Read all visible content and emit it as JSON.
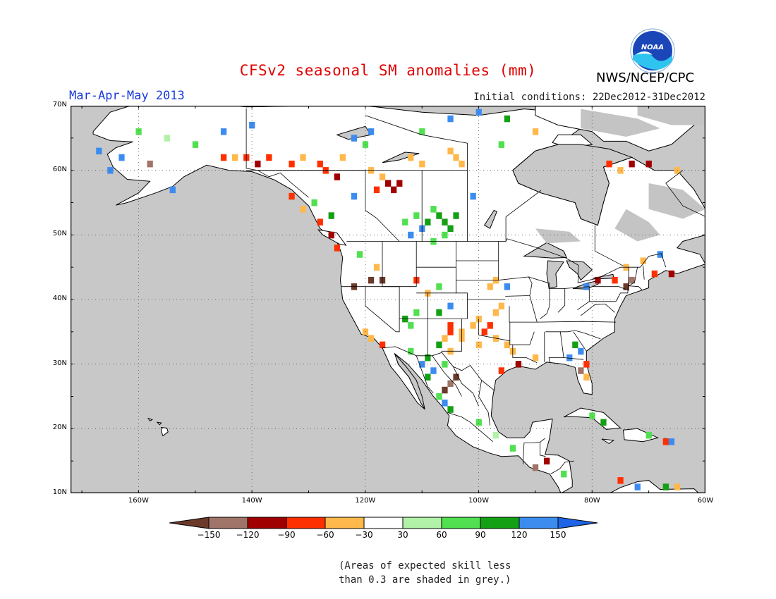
{
  "title": "CFSv2 seasonal SM anomalies (mm)",
  "season": "Mar-Apr-May 2013",
  "initial_conditions": "Initial conditions: 22Dec2012-31Dec2012",
  "agency": "NWS/NCEP/CPC",
  "logo_text": "NOAA",
  "note_line1": "(Areas of expected skill less",
  "note_line2": "than 0.3 are shaded in grey.)",
  "lat_labels": [
    "70N",
    "60N",
    "50N",
    "40N",
    "30N",
    "20N",
    "10N"
  ],
  "lon_labels": [
    "160W",
    "140W",
    "120W",
    "100W",
    "80W",
    "60W"
  ],
  "colorbar": {
    "labels": [
      "-150",
      "-120",
      "-90",
      "-60",
      "-30",
      "30",
      "60",
      "90",
      "120",
      "150"
    ],
    "colors": [
      "#6b3a2a",
      "#a07468",
      "#a00000",
      "#ff3000",
      "#ffb84a",
      "#ffffff",
      "#b2f2a8",
      "#50e050",
      "#14a014",
      "#3c8cf0",
      "#1e64e6"
    ]
  },
  "colors": {
    "ocean": "#c8c8c8",
    "land": "#ffffff",
    "no_skill": "#c4c4c4",
    "title": "#e00000",
    "season": "#1a3cd8"
  },
  "extent": {
    "lon_min": -172,
    "lon_max": -60,
    "lat_min": 10,
    "lat_max": 70
  },
  "anomaly_cells": [
    {
      "lat": 58,
      "lon": -116,
      "level": -3
    },
    {
      "lat": 57,
      "lon": -115,
      "level": -3
    },
    {
      "lat": 58,
      "lon": -114,
      "level": -3
    },
    {
      "lat": 59,
      "lon": -117,
      "level": -1
    },
    {
      "lat": 60,
      "lon": -119,
      "level": -1
    },
    {
      "lat": 57,
      "lon": -118,
      "level": -2
    },
    {
      "lat": 62,
      "lon": -124,
      "level": -1
    },
    {
      "lat": 61,
      "lon": -128,
      "level": -2
    },
    {
      "lat": 60,
      "lon": -127,
      "level": -2
    },
    {
      "lat": 62,
      "lon": -131,
      "level": -1
    },
    {
      "lat": 61,
      "lon": -133,
      "level": -2
    },
    {
      "lat": 59,
      "lon": -125,
      "level": -3
    },
    {
      "lat": 62,
      "lon": -145,
      "level": -2
    },
    {
      "lat": 62,
      "lon": -143,
      "level": -1
    },
    {
      "lat": 62,
      "lon": -141,
      "level": -2
    },
    {
      "lat": 61,
      "lon": -139,
      "level": -3
    },
    {
      "lat": 62,
      "lon": -137,
      "level": -2
    },
    {
      "lat": 62,
      "lon": -112,
      "level": -1
    },
    {
      "lat": 61,
      "lon": -110,
      "level": -1
    },
    {
      "lat": 53,
      "lon": -107,
      "level": 3
    },
    {
      "lat": 52,
      "lon": -106,
      "level": 3
    },
    {
      "lat": 51,
      "lon": -105,
      "level": 3
    },
    {
      "lat": 53,
      "lon": -104,
      "level": 3
    },
    {
      "lat": 52,
      "lon": -109,
      "level": 3
    },
    {
      "lat": 50,
      "lon": -106,
      "level": 2
    },
    {
      "lat": 51,
      "lon": -110,
      "level": 4
    },
    {
      "lat": 50,
      "lon": -112,
      "level": 4
    },
    {
      "lat": 52,
      "lon": -113,
      "level": 2
    },
    {
      "lat": 53,
      "lon": -111,
      "level": 2
    },
    {
      "lat": 54,
      "lon": -108,
      "level": 2
    },
    {
      "lat": 49,
      "lon": -108,
      "level": 2
    },
    {
      "lat": 65,
      "lon": -122,
      "level": 4
    },
    {
      "lat": 66,
      "lon": -119,
      "level": 4
    },
    {
      "lat": 64,
      "lon": -120,
      "level": 2
    },
    {
      "lat": 67,
      "lon": -140,
      "level": 4
    },
    {
      "lat": 66,
      "lon": -145,
      "level": 4
    },
    {
      "lat": 60,
      "lon": -165,
      "level": 4
    },
    {
      "lat": 57,
      "lon": -154,
      "level": 4
    },
    {
      "lat": 56,
      "lon": -122,
      "level": 4
    },
    {
      "lat": 56,
      "lon": -101,
      "level": 4
    },
    {
      "lat": 63,
      "lon": -105,
      "level": -1
    },
    {
      "lat": 62,
      "lon": -104,
      "level": -1
    },
    {
      "lat": 61,
      "lon": -103,
      "level": -1
    },
    {
      "lat": 36,
      "lon": -105,
      "level": -2
    },
    {
      "lat": 35,
      "lon": -103,
      "level": -1
    },
    {
      "lat": 36,
      "lon": -101,
      "level": -1
    },
    {
      "lat": 35,
      "lon": -99,
      "level": -2
    },
    {
      "lat": 34,
      "lon": -97,
      "level": -1
    },
    {
      "lat": 37,
      "lon": -100,
      "level": -1
    },
    {
      "lat": 33,
      "lon": -95,
      "level": -1
    },
    {
      "lat": 34,
      "lon": -103,
      "level": -1
    },
    {
      "lat": 32,
      "lon": -105,
      "level": -1
    },
    {
      "lat": 38,
      "lon": -97,
      "level": -1
    },
    {
      "lat": 39,
      "lon": -96,
      "level": -1
    },
    {
      "lat": 36,
      "lon": -98,
      "level": -2
    },
    {
      "lat": 35,
      "lon": -105,
      "level": -2
    },
    {
      "lat": 34,
      "lon": -106,
      "level": -1
    },
    {
      "lat": 33,
      "lon": -100,
      "level": -1
    },
    {
      "lat": 31,
      "lon": -109,
      "level": 3
    },
    {
      "lat": 30,
      "lon": -110,
      "level": 4
    },
    {
      "lat": 29,
      "lon": -108,
      "level": 4
    },
    {
      "lat": 30,
      "lon": -106,
      "level": 2
    },
    {
      "lat": 28,
      "lon": -109,
      "level": 3
    },
    {
      "lat": 32,
      "lon": -112,
      "level": 2
    },
    {
      "lat": 27,
      "lon": -105,
      "level": -4
    },
    {
      "lat": 26,
      "lon": -106,
      "level": -5
    },
    {
      "lat": 28,
      "lon": -104,
      "level": -5
    },
    {
      "lat": 25,
      "lon": -107,
      "level": 2
    },
    {
      "lat": 24,
      "lon": -106,
      "level": 4
    },
    {
      "lat": 23,
      "lon": -105,
      "level": 3
    },
    {
      "lat": 34,
      "lon": -119,
      "level": -1
    },
    {
      "lat": 35,
      "lon": -120,
      "level": -1
    },
    {
      "lat": 33,
      "lon": -117,
      "level": -2
    },
    {
      "lat": 37,
      "lon": -113,
      "level": 3
    },
    {
      "lat": 36,
      "lon": -112,
      "level": 2
    },
    {
      "lat": 38,
      "lon": -111,
      "level": 2
    },
    {
      "lat": 41,
      "lon": -109,
      "level": -1
    },
    {
      "lat": 42,
      "lon": -107,
      "level": 2
    },
    {
      "lat": 43,
      "lon": -111,
      "level": -2
    },
    {
      "lat": 43,
      "lon": -119,
      "level": -5
    },
    {
      "lat": 43,
      "lon": -117,
      "level": -5
    },
    {
      "lat": 42,
      "lon": -122,
      "level": -5
    },
    {
      "lat": 42,
      "lon": -98,
      "level": -1
    },
    {
      "lat": 43,
      "lon": -97,
      "level": -1
    },
    {
      "lat": 42,
      "lon": -95,
      "level": 4
    },
    {
      "lat": 42,
      "lon": -74,
      "level": -5
    },
    {
      "lat": 43,
      "lon": -73,
      "level": -4
    },
    {
      "lat": 43,
      "lon": -76,
      "level": -2
    },
    {
      "lat": 44,
      "lon": -69,
      "level": -2
    },
    {
      "lat": 44,
      "lon": -66,
      "level": -3
    },
    {
      "lat": 43,
      "lon": -79,
      "level": -3
    },
    {
      "lat": 42,
      "lon": -81,
      "level": 4
    },
    {
      "lat": 31,
      "lon": -84,
      "level": 4
    },
    {
      "lat": 32,
      "lon": -82,
      "level": 4
    },
    {
      "lat": 33,
      "lon": -83,
      "level": 3
    },
    {
      "lat": 30,
      "lon": -81,
      "level": -2
    },
    {
      "lat": 31,
      "lon": -90,
      "level": -1
    },
    {
      "lat": 30,
      "lon": -93,
      "level": -3
    },
    {
      "lat": 29,
      "lon": -96,
      "level": -2
    },
    {
      "lat": 32,
      "lon": -94,
      "level": -1
    },
    {
      "lat": 29,
      "lon": -82,
      "level": -4
    },
    {
      "lat": 28,
      "lon": -81,
      "level": -1
    },
    {
      "lat": 61,
      "lon": -77,
      "level": -2
    },
    {
      "lat": 61,
      "lon": -73,
      "level": -3
    },
    {
      "lat": 61,
      "lon": -70,
      "level": -3
    },
    {
      "lat": 60,
      "lon": -65,
      "level": -1
    },
    {
      "lat": 60,
      "lon": -75,
      "level": -1
    },
    {
      "lat": 46,
      "lon": -71,
      "level": -1
    },
    {
      "lat": 45,
      "lon": -74,
      "level": -1
    },
    {
      "lat": 47,
      "lon": -68,
      "level": 4
    },
    {
      "lat": 21,
      "lon": -78,
      "level": 3
    },
    {
      "lat": 22,
      "lon": -80,
      "level": 2
    },
    {
      "lat": 19,
      "lon": -70,
      "level": 2
    },
    {
      "lat": 18,
      "lon": -67,
      "level": -2
    },
    {
      "lat": 18,
      "lon": -66,
      "level": 4
    },
    {
      "lat": 15,
      "lon": -88,
      "level": -3
    },
    {
      "lat": 14,
      "lon": -90,
      "level": -4
    },
    {
      "lat": 13,
      "lon": -85,
      "level": 2
    },
    {
      "lat": 11,
      "lon": -72,
      "level": 4
    },
    {
      "lat": 11,
      "lon": -67,
      "level": 3
    },
    {
      "lat": 11,
      "lon": -65,
      "level": -1
    },
    {
      "lat": 12,
      "lon": -75,
      "level": -2
    },
    {
      "lat": 17,
      "lon": -94,
      "level": 2
    },
    {
      "lat": 19,
      "lon": -97,
      "level": 1
    },
    {
      "lat": 21,
      "lon": -100,
      "level": 2
    },
    {
      "lat": 33,
      "lon": -107,
      "level": 3
    },
    {
      "lat": 38,
      "lon": -107,
      "level": 3
    },
    {
      "lat": 39,
      "lon": -105,
      "level": 4
    },
    {
      "lat": 45,
      "lon": -118,
      "level": -1
    },
    {
      "lat": 47,
      "lon": -121,
      "level": 2
    },
    {
      "lat": 48,
      "lon": -125,
      "level": -2
    },
    {
      "lat": 50,
      "lon": -126,
      "level": -3
    },
    {
      "lat": 52,
      "lon": -128,
      "level": -2
    },
    {
      "lat": 54,
      "lon": -131,
      "level": -1
    },
    {
      "lat": 56,
      "lon": -133,
      "level": -2
    },
    {
      "lat": 55,
      "lon": -129,
      "level": 2
    },
    {
      "lat": 53,
      "lon": -126,
      "level": 3
    },
    {
      "lat": 66,
      "lon": -110,
      "level": 2
    },
    {
      "lat": 68,
      "lon": -105,
      "level": 4
    },
    {
      "lat": 69,
      "lon": -100,
      "level": 4
    },
    {
      "lat": 68,
      "lon": -95,
      "level": 3
    },
    {
      "lat": 66,
      "lon": -90,
      "level": -1
    },
    {
      "lat": 64,
      "lon": -96,
      "level": 2
    },
    {
      "lat": 64,
      "lon": -150,
      "level": 2
    },
    {
      "lat": 65,
      "lon": -155,
      "level": 1
    },
    {
      "lat": 66,
      "lon": -160,
      "level": 2
    },
    {
      "lat": 61,
      "lon": -158,
      "level": -4
    },
    {
      "lat": 62,
      "lon": -163,
      "level": 4
    },
    {
      "lat": 63,
      "lon": -167,
      "level": 4
    }
  ]
}
